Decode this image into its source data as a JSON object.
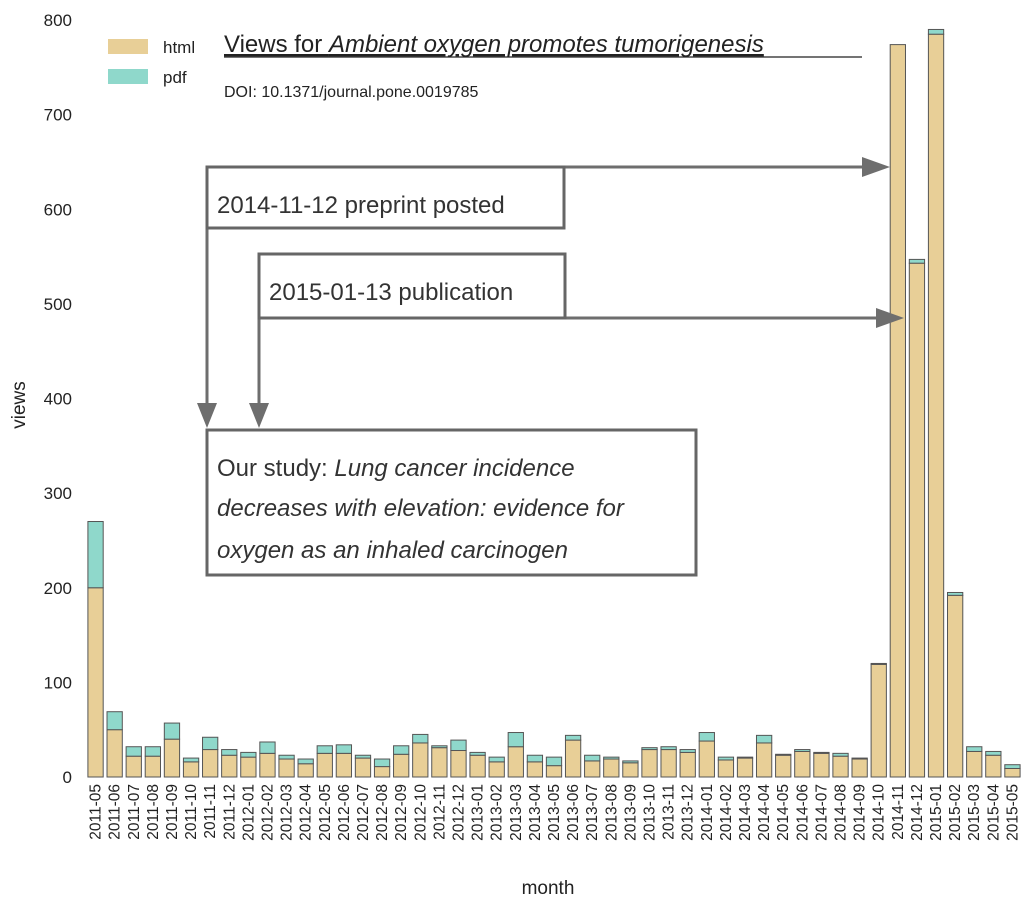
{
  "chart_data": {
    "type": "bar",
    "stacked": true,
    "title_prefix": "Views for ",
    "title_italic": "Ambient oxygen promotes tumorigenesis",
    "subtitle": "DOI: 10.1371/journal.pone.0019785",
    "xlabel": "month",
    "ylabel": "views",
    "ylim": [
      0,
      800
    ],
    "yticks": [
      0,
      100,
      200,
      300,
      400,
      500,
      600,
      700,
      800
    ],
    "legend_position": "top-left",
    "colors": {
      "html": "#e8cf97",
      "pdf": "#8fd8cb"
    },
    "categories": [
      "2011-05",
      "2011-06",
      "2011-07",
      "2011-08",
      "2011-09",
      "2011-10",
      "2011-11",
      "2011-12",
      "2012-01",
      "2012-02",
      "2012-03",
      "2012-04",
      "2012-05",
      "2012-06",
      "2012-07",
      "2012-08",
      "2012-09",
      "2012-10",
      "2012-11",
      "2012-12",
      "2013-01",
      "2013-02",
      "2013-03",
      "2013-04",
      "2013-05",
      "2013-06",
      "2013-07",
      "2013-08",
      "2013-09",
      "2013-10",
      "2013-11",
      "2013-12",
      "2014-01",
      "2014-02",
      "2014-03",
      "2014-04",
      "2014-05",
      "2014-06",
      "2014-07",
      "2014-08",
      "2014-09",
      "2014-10",
      "2014-11",
      "2014-12",
      "2015-01",
      "2015-02",
      "2015-03",
      "2015-04",
      "2015-05"
    ],
    "series": [
      {
        "name": "html",
        "values": [
          200,
          50,
          22,
          22,
          40,
          16,
          29,
          23,
          21,
          25,
          19,
          14,
          25,
          25,
          20,
          11,
          24,
          36,
          31,
          28,
          23,
          16,
          32,
          16,
          12,
          39,
          17,
          19,
          15,
          29,
          29,
          26,
          38,
          18,
          20,
          36,
          23,
          27,
          25,
          22,
          19,
          119,
          774,
          543,
          785,
          192,
          27,
          23,
          9
        ]
      },
      {
        "name": "pdf",
        "values": [
          70,
          19,
          10,
          10,
          17,
          4,
          13,
          6,
          5,
          12,
          4,
          5,
          8,
          9,
          3,
          8,
          9,
          9,
          2,
          11,
          3,
          5,
          15,
          7,
          9,
          5,
          6,
          2,
          2,
          2,
          3,
          3,
          9,
          3,
          1,
          8,
          1,
          2,
          1,
          3,
          1,
          1,
          0,
          4,
          5,
          3,
          5,
          4,
          4
        ]
      }
    ],
    "annotations": {
      "preprint": "2014-11-12 preprint posted",
      "publication": "2015-01-13 publication",
      "study_prefix": "Our study: ",
      "study_line1": "Lung cancer incidence",
      "study_line2": "decreases with elevation: evidence for",
      "study_line3": "oxygen as an inhaled carcinogen"
    }
  }
}
